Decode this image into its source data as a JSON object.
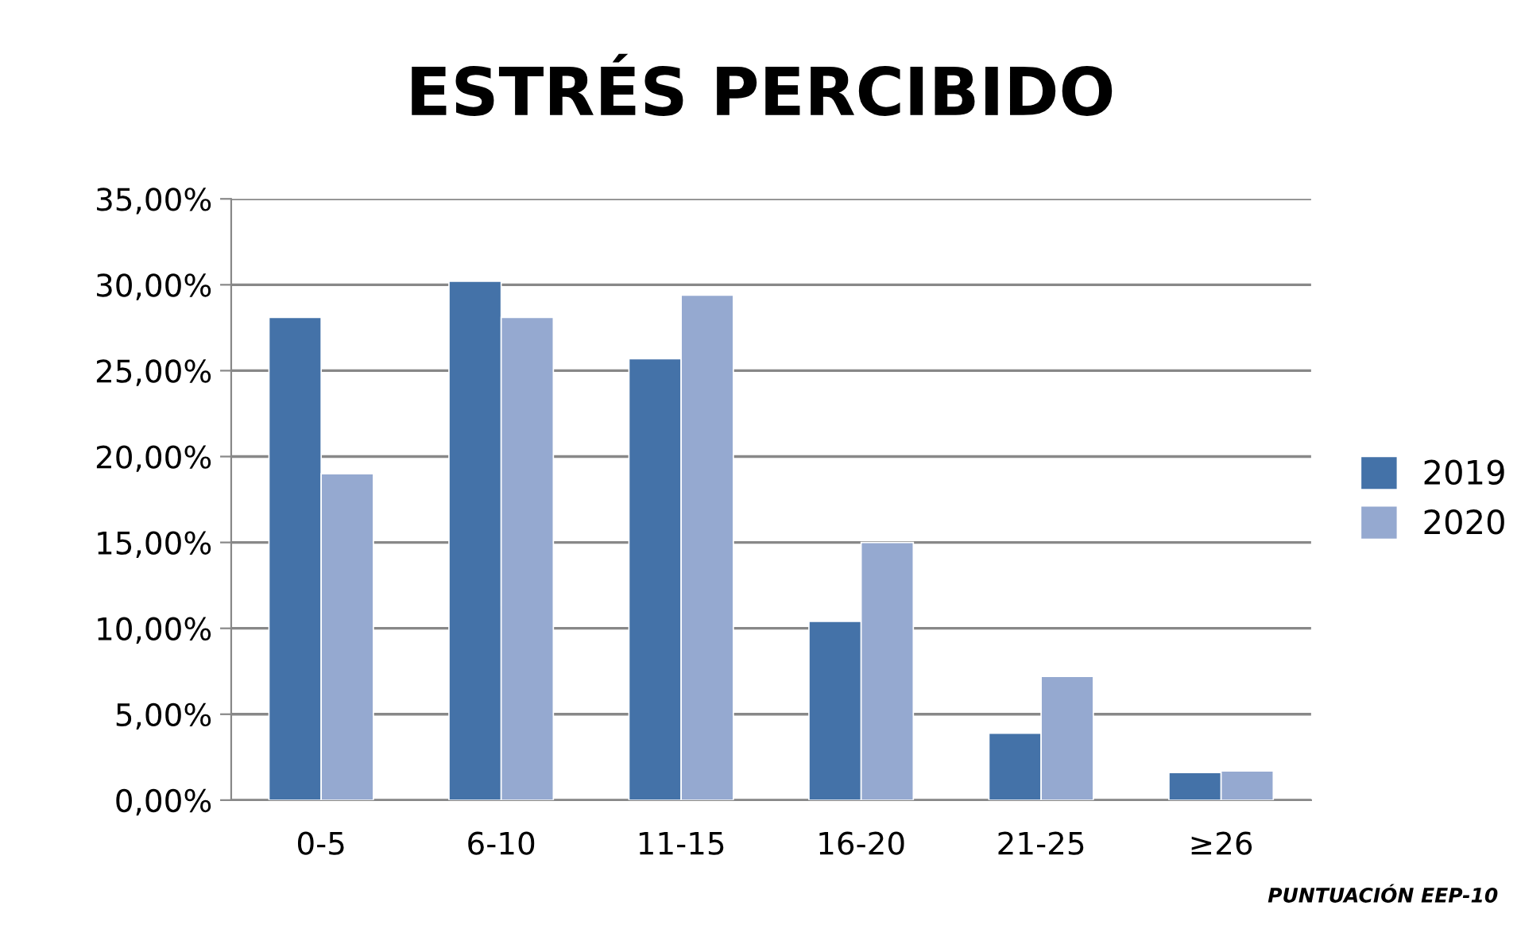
{
  "chart_data": {
    "type": "bar",
    "title": "ESTRÉS PERCIBIDO",
    "categories": [
      "0-5",
      "6-10",
      "11-15",
      "16-20",
      "21-25",
      "≥26"
    ],
    "series": [
      {
        "name": "2019",
        "color": "#4472a8",
        "values": [
          28.1,
          30.2,
          25.7,
          10.4,
          3.9,
          1.6
        ]
      },
      {
        "name": "2020",
        "color": "#95a9d0",
        "values": [
          19.0,
          28.1,
          29.4,
          15.0,
          7.2,
          1.7
        ]
      }
    ],
    "ylim": [
      0,
      35
    ],
    "yticks": [
      {
        "value": 0,
        "label": "0,00%"
      },
      {
        "value": 5,
        "label": "5,00%"
      },
      {
        "value": 10,
        "label": "10,00%"
      },
      {
        "value": 15,
        "label": "15,00%"
      },
      {
        "value": 20,
        "label": "20,00%"
      },
      {
        "value": 25,
        "label": "25,00%"
      },
      {
        "value": 30,
        "label": "30,00%"
      },
      {
        "value": 35,
        "label": "35,00%"
      }
    ],
    "grid": "y",
    "legend": "right",
    "annotations": [
      "PUNTUACIÓN EEP-10"
    ]
  }
}
